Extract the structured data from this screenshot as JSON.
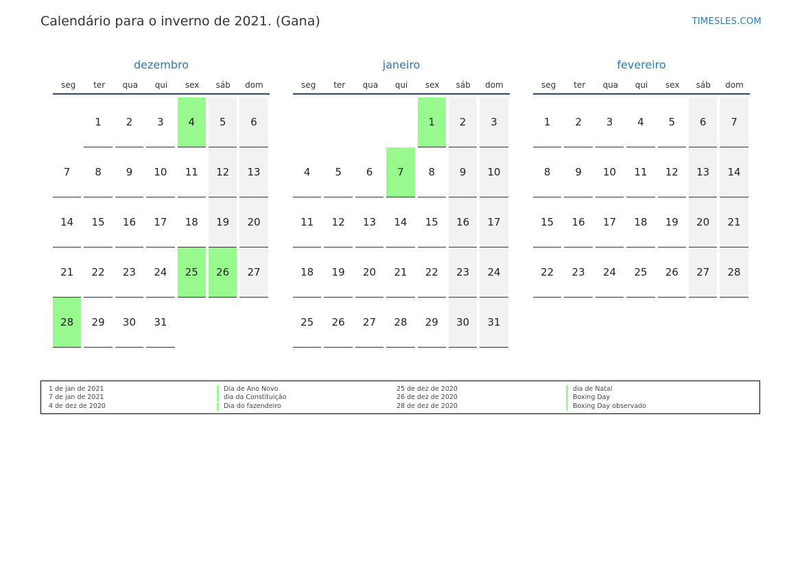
{
  "title": "Calendário para o inverno de 2021. (Gana)",
  "brand": "TIMESLES.COM",
  "colors": {
    "holiday": "#98f98f",
    "weekend": "#f2f2f2",
    "accent": "#2a7ab8",
    "rule": "#2e4a66"
  },
  "weekdays": [
    "seg",
    "ter",
    "qua",
    "qui",
    "sex",
    "sáb",
    "dom"
  ],
  "months": [
    {
      "name": "dezembro",
      "offset": 1,
      "days": 31,
      "holidays": [
        4,
        25,
        26,
        28
      ]
    },
    {
      "name": "janeiro",
      "offset": 4,
      "days": 31,
      "holidays": [
        1,
        7
      ]
    },
    {
      "name": "fevereiro",
      "offset": 0,
      "days": 28,
      "holidays": []
    }
  ],
  "legend": [
    {
      "date": "1 de jan de 2021",
      "name": "Dia de Ano Novo"
    },
    {
      "date": "7 de jan de 2021",
      "name": "dia da Constituição"
    },
    {
      "date": "4 de dez de 2020",
      "name": "Dia do fazendeiro"
    },
    {
      "date": "25 de dez de 2020",
      "name": "dia de Natal"
    },
    {
      "date": "26 de dez de 2020",
      "name": "Boxing Day"
    },
    {
      "date": "28 de dez de 2020",
      "name": "Boxing Day observado"
    }
  ]
}
